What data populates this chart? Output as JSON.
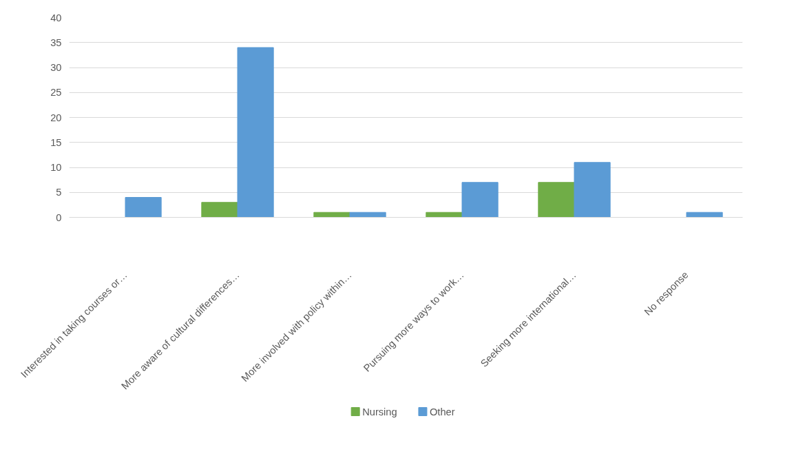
{
  "chart_data": {
    "type": "bar",
    "categories": [
      "Interested in taking courses or…",
      "More aware of cultural differences…",
      "More involved with policy within…",
      "Pursuing more ways to work…",
      "Seeking more international…",
      "No response"
    ],
    "series": [
      {
        "name": "Nursing",
        "color": "#70ad47",
        "values": [
          0,
          3,
          1,
          1,
          7,
          0
        ]
      },
      {
        "name": "Other",
        "color": "#5b9bd5",
        "values": [
          4,
          34,
          1,
          7,
          11,
          1
        ]
      }
    ],
    "ylim": [
      0,
      40
    ],
    "yticks": [
      0,
      5,
      10,
      15,
      20,
      25,
      30,
      35,
      40
    ],
    "grid": "y",
    "legend": "bottom"
  }
}
